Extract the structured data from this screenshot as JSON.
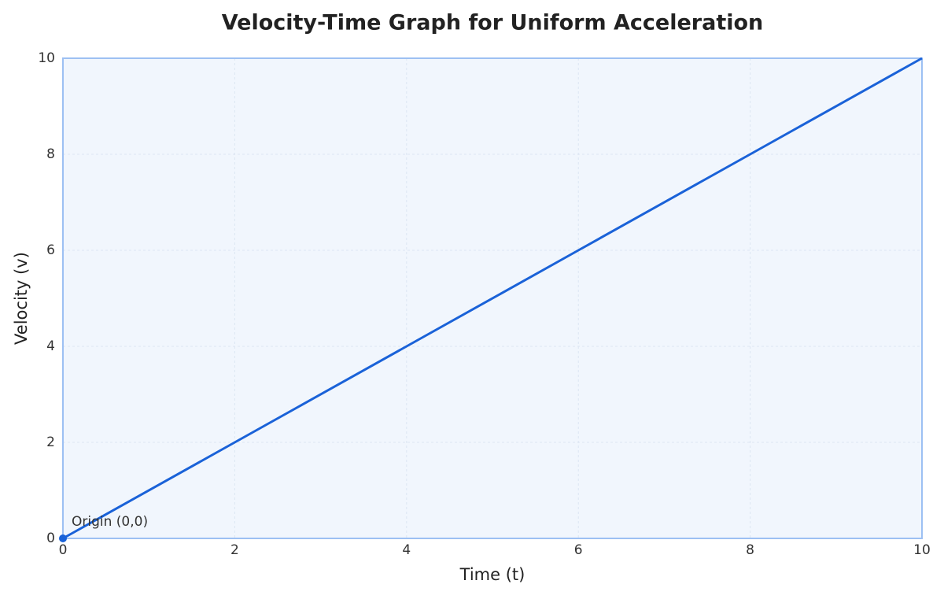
{
  "chart_data": {
    "type": "line",
    "title": "Velocity-Time Graph for Uniform Acceleration",
    "x_label": "Time (t)",
    "y_label": "Velocity (v)",
    "x": [
      0,
      2,
      4,
      6,
      8,
      10
    ],
    "values": [
      0,
      2,
      4,
      6,
      8,
      10
    ],
    "color": "#1a62d8",
    "xlim": [
      0,
      10
    ],
    "ylim": [
      0,
      10
    ],
    "xticks": [
      0,
      2,
      4,
      6,
      8,
      10
    ],
    "yticks": [
      0,
      2,
      4,
      6,
      8,
      10
    ],
    "grid": true,
    "annotations": [
      {
        "text": "Origin (0,0)",
        "x": 0,
        "y": 0
      }
    ]
  }
}
